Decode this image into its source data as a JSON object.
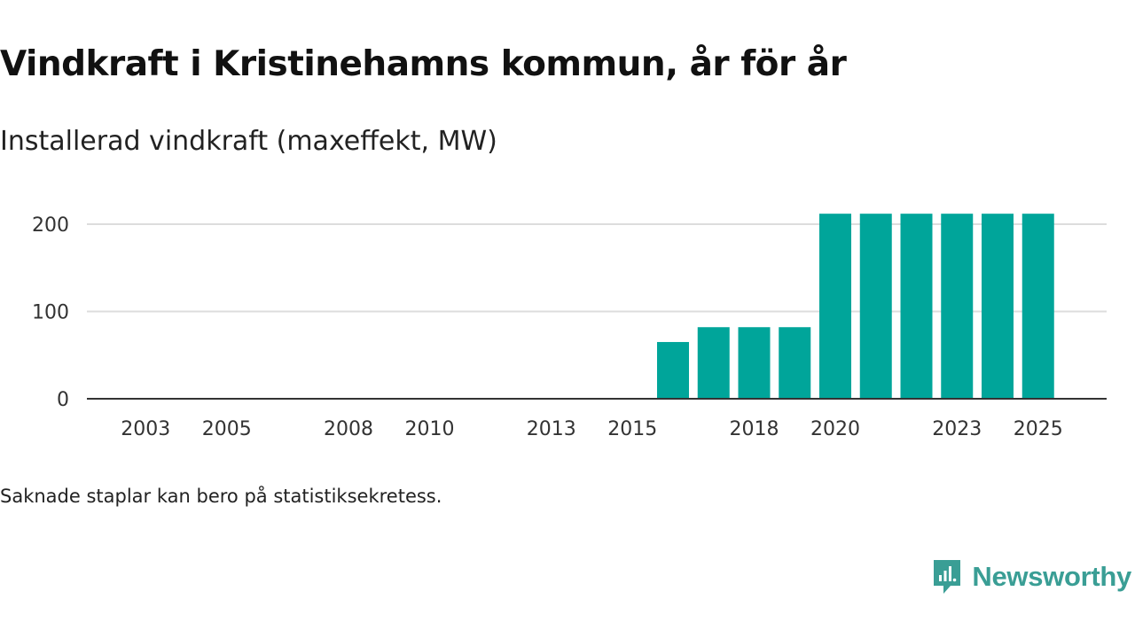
{
  "title": "Vindkraft i Kristinehamns kommun, år för år",
  "subtitle": "Installerad vindkraft (maxeffekt, MW)",
  "footnote": "Saknade staplar kan bero på statistiksekretess.",
  "brand": {
    "name": "Newsworthy",
    "color": "#3a9e95",
    "icon": "newsworthy-logo-icon"
  },
  "colors": {
    "bar": "#00a59a",
    "grid": "#dddddd",
    "axis": "#333333"
  },
  "chart_data": {
    "type": "bar",
    "title": "Vindkraft i Kristinehamns kommun, år för år",
    "subtitle": "Installerad vindkraft (maxeffekt, MW)",
    "xlabel": "",
    "ylabel": "Installerad vindkraft (maxeffekt, MW)",
    "categories": [
      "2002",
      "2003",
      "2004",
      "2005",
      "2006",
      "2007",
      "2008",
      "2009",
      "2010",
      "2011",
      "2012",
      "2013",
      "2014",
      "2015",
      "2016",
      "2017",
      "2018",
      "2019",
      "2020",
      "2021",
      "2022",
      "2023",
      "2024",
      "2025"
    ],
    "values": [
      0,
      0,
      0,
      0,
      0,
      0,
      0,
      0,
      0,
      0,
      0,
      0,
      0,
      0,
      65,
      82,
      82,
      82,
      212,
      212,
      212,
      212,
      212,
      212
    ],
    "x_tick_labels": [
      "2003",
      "2005",
      "2008",
      "2010",
      "2013",
      "2015",
      "2018",
      "2020",
      "2023",
      "2025"
    ],
    "y_ticks": [
      0,
      100,
      200
    ],
    "ylim": [
      0,
      230
    ],
    "grid": true,
    "legend": "none"
  }
}
